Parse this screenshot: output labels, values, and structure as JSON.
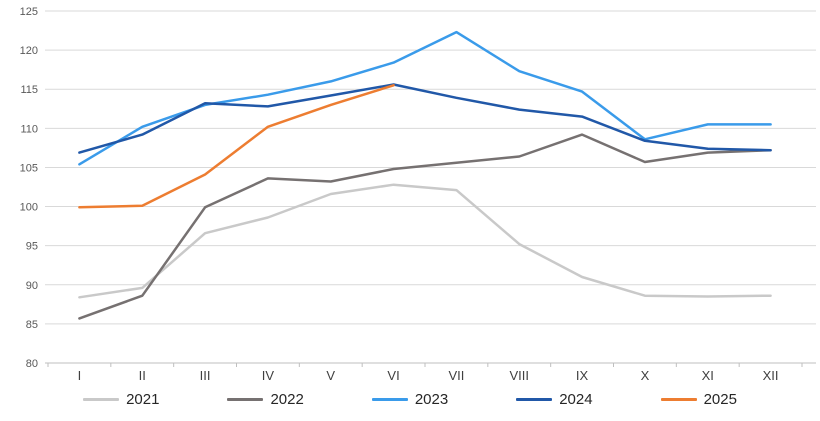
{
  "chart_data": {
    "type": "line",
    "title": "",
    "xlabel": "",
    "ylabel": "",
    "categories": [
      "I",
      "II",
      "III",
      "IV",
      "V",
      "VI",
      "VII",
      "VIII",
      "IX",
      "X",
      "XI",
      "XII"
    ],
    "series": [
      {
        "name": "2021",
        "color": "#C9C9C9",
        "values": [
          88.4,
          89.6,
          96.6,
          98.6,
          101.6,
          102.8,
          102.1,
          95.2,
          91.0,
          88.6,
          88.5,
          88.6
        ]
      },
      {
        "name": "2022",
        "color": "#767171",
        "values": [
          85.7,
          88.6,
          99.9,
          103.6,
          103.2,
          104.8,
          105.6,
          106.4,
          109.2,
          105.7,
          106.9,
          107.2
        ]
      },
      {
        "name": "2023",
        "color": "#3A9BEA",
        "values": [
          105.4,
          110.2,
          113.0,
          114.3,
          116.0,
          118.4,
          122.3,
          117.3,
          114.7,
          108.6,
          110.5,
          110.5
        ]
      },
      {
        "name": "2024",
        "color": "#2158A8",
        "values": [
          106.9,
          109.2,
          113.2,
          112.8,
          114.2,
          115.6,
          113.9,
          112.4,
          111.5,
          108.4,
          107.4,
          107.2
        ]
      },
      {
        "name": "2025",
        "color": "#ED7D31",
        "values": [
          99.9,
          100.1,
          104.1,
          110.2,
          113.0,
          115.5
        ]
      }
    ],
    "y_axis": {
      "min": 80,
      "max": 125,
      "step": 5
    },
    "grid": true,
    "legend_position": "bottom",
    "colors": {
      "gridline": "#D9D9D9",
      "axis_line": "#BFBFBF",
      "y_tick_label": "#595959",
      "x_tick_label": "#404040",
      "legend_text": "#262626",
      "background": "#FFFFFF"
    }
  }
}
